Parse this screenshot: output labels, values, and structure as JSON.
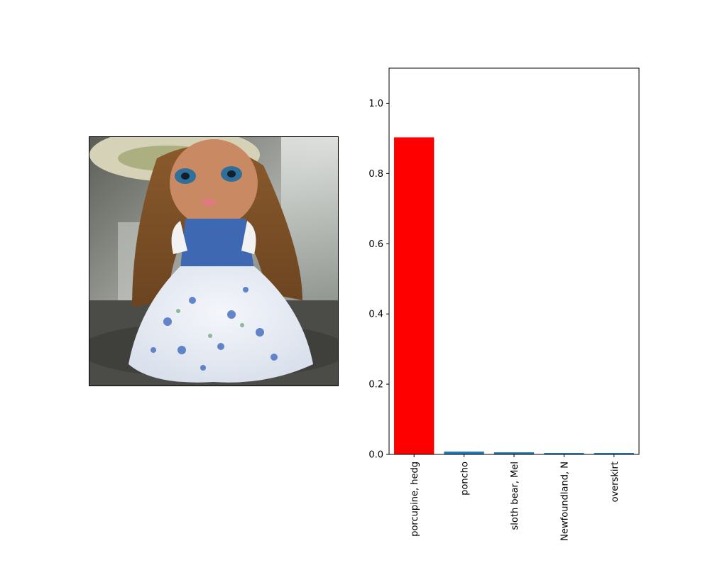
{
  "colors": {
    "highlight": "#ff0000",
    "default": "#1f77b4"
  },
  "photo": {
    "icon": "doll-photo"
  },
  "chart_data": {
    "type": "bar",
    "categories": [
      "porcupine, hedg",
      "poncho",
      "sloth bear, Mel",
      "Newfoundland, N",
      "overskirt"
    ],
    "values": [
      0.903,
      0.008,
      0.006,
      0.004,
      0.004
    ],
    "highlight_index": 0,
    "title": "",
    "xlabel": "",
    "ylabel": "",
    "ylim": [
      0,
      1.1
    ],
    "yticks": [
      "0.0",
      "0.2",
      "0.4",
      "0.6",
      "0.8",
      "1.0"
    ],
    "grid": false
  }
}
